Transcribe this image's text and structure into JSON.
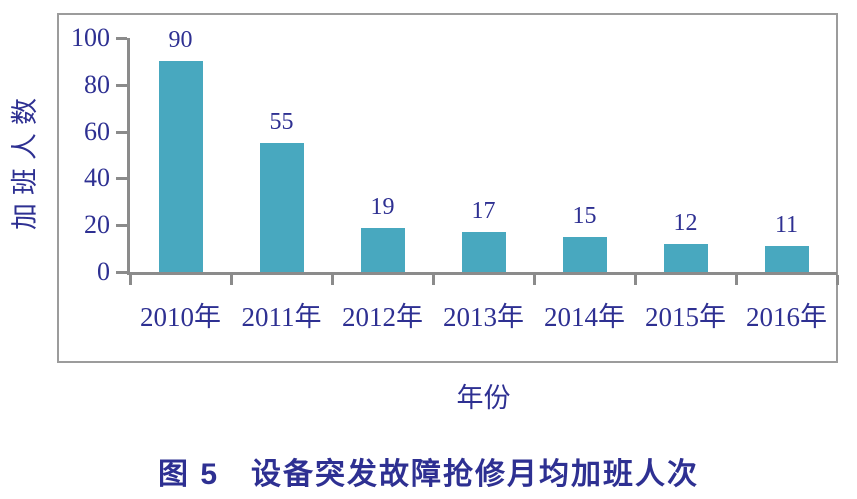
{
  "chart_data": {
    "type": "bar",
    "categories": [
      "2010年",
      "2011年",
      "2012年",
      "2013年",
      "2014年",
      "2015年",
      "2016年"
    ],
    "values": [
      90,
      55,
      19,
      17,
      15,
      12,
      11
    ],
    "title": "图 5　设备突发故障抢修月均加班人次",
    "xlabel": "年份",
    "ylabel": "加班人数",
    "ylim": [
      0,
      100
    ],
    "yticks": [
      0,
      20,
      40,
      60,
      80,
      100
    ],
    "grid": false,
    "legend": "none",
    "bar_color": "#48a8bf",
    "text_color": "#2e3092",
    "axis_color": "#8b8b8b",
    "frame_color": "#9c9c9c"
  }
}
